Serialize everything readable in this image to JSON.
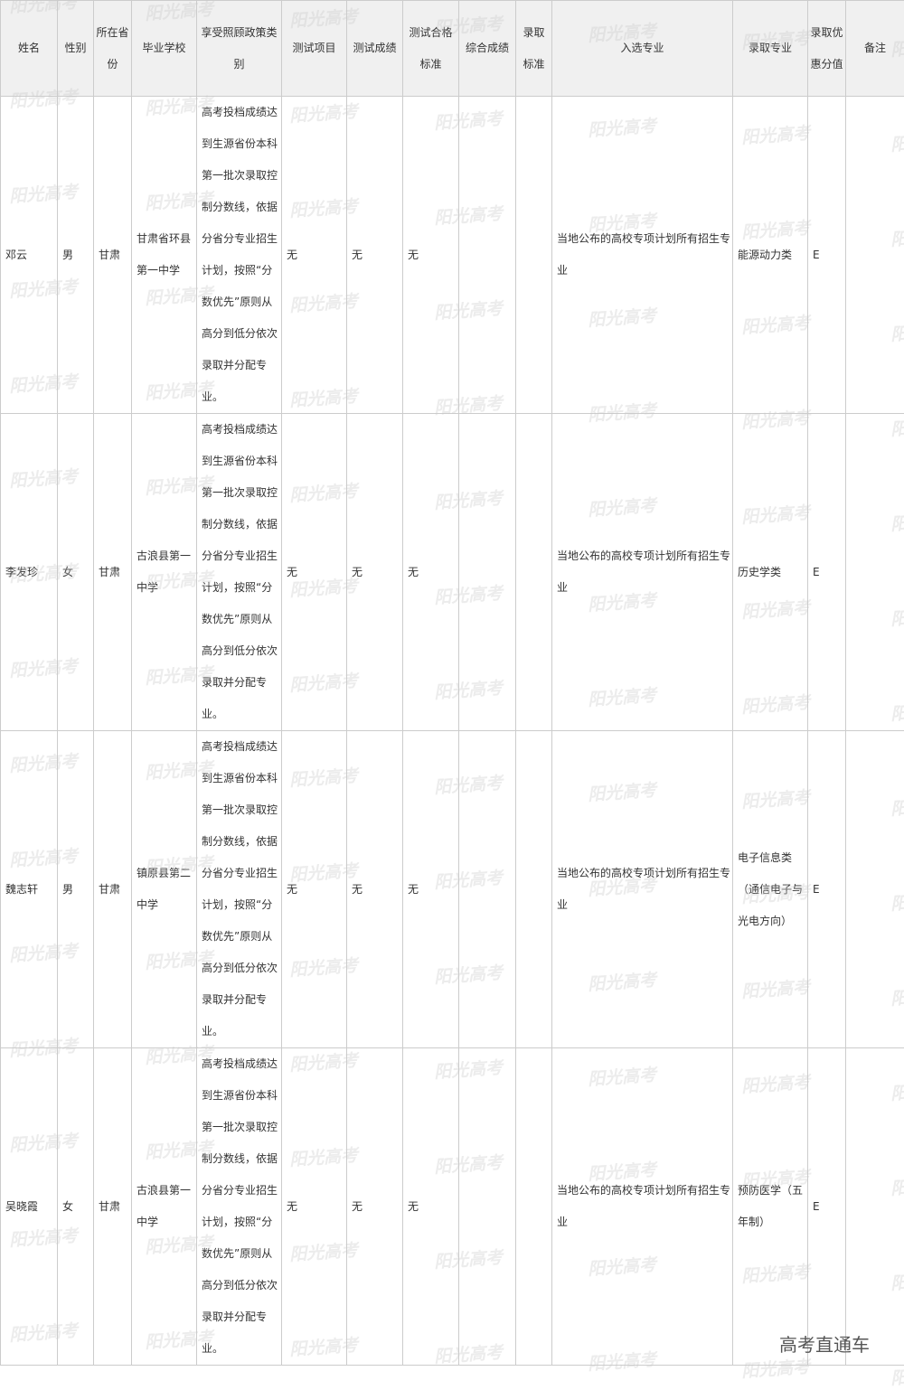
{
  "headers": [
    "姓名",
    "性别",
    "所在省份",
    "毕业学校",
    "享受照顾政策类别",
    "测试项目",
    "测试成绩",
    "测试合格标准",
    "综合成绩",
    "录取标准",
    "入选专业",
    "录取专业",
    "录取优惠分值",
    "备注"
  ],
  "rows": [
    {
      "name": "邓云",
      "gender": "男",
      "province": "甘肃",
      "school": "甘肃省环县第一中学",
      "policy": "高考投档成绩达到生源省份本科第一批次录取控制分数线，依据分省分专业招生计划，按照“分数优先”原则从高分到低分依次录取并分配专业。",
      "test_item": "无",
      "test_score": "无",
      "test_standard": "无",
      "total_score": "",
      "admit_standard": "",
      "selected_major": "当地公布的高校专项计划所有招生专业",
      "admitted_major": "能源动力类",
      "bonus": "E",
      "remark": ""
    },
    {
      "name": "李发珍",
      "gender": "女",
      "province": "甘肃",
      "school": "古浪县第一中学",
      "policy": "高考投档成绩达到生源省份本科第一批次录取控制分数线，依据分省分专业招生计划，按照“分数优先”原则从高分到低分依次录取并分配专业。",
      "test_item": "无",
      "test_score": "无",
      "test_standard": "无",
      "total_score": "",
      "admit_standard": "",
      "selected_major": "当地公布的高校专项计划所有招生专业",
      "admitted_major": "历史学类",
      "bonus": "E",
      "remark": ""
    },
    {
      "name": "魏志轩",
      "gender": "男",
      "province": "甘肃",
      "school": "镇原县第二中学",
      "policy": "高考投档成绩达到生源省份本科第一批次录取控制分数线，依据分省分专业招生计划，按照“分数优先”原则从高分到低分依次录取并分配专业。",
      "test_item": "无",
      "test_score": "无",
      "test_standard": "无",
      "total_score": "",
      "admit_standard": "",
      "selected_major": "当地公布的高校专项计划所有招生专业",
      "admitted_major": "电子信息类（通信电子与光电方向）",
      "bonus": "E",
      "remark": ""
    },
    {
      "name": "吴晓霞",
      "gender": "女",
      "province": "甘肃",
      "school": "古浪县第一中学",
      "policy": "高考投档成绩达到生源省份本科第一批次录取控制分数线，依据分省分专业招生计划，按照“分数优先”原则从高分到低分依次录取并分配专业。",
      "test_item": "无",
      "test_score": "无",
      "test_standard": "无",
      "total_score": "",
      "admit_standard": "",
      "selected_major": "当地公布的高校专项计划所有招生专业",
      "admitted_major": "预防医学（五年制）",
      "bonus": "E",
      "remark": ""
    }
  ],
  "watermark": "阳光高考",
  "logo": "高考直通车"
}
